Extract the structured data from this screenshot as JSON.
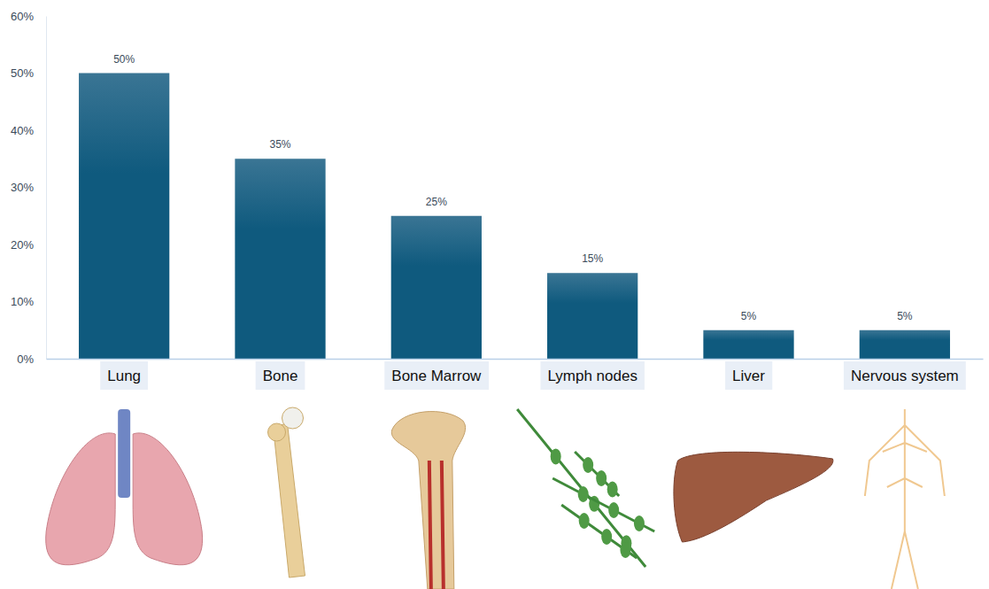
{
  "chart_data": {
    "type": "bar",
    "categories": [
      "Lung",
      "Bone",
      "Bone Marrow",
      "Lymph nodes",
      "Liver",
      "Nervous system"
    ],
    "values": [
      50,
      35,
      25,
      15,
      5,
      5
    ],
    "value_labels": [
      "50%",
      "35%",
      "25%",
      "15%",
      "5%",
      "5%"
    ],
    "color": "#0f5a7e",
    "ylim": [
      0,
      60
    ],
    "yticks": [
      {
        "value": 0,
        "label": "0%"
      },
      {
        "value": 10,
        "label": "10%"
      },
      {
        "value": 20,
        "label": "20%"
      },
      {
        "value": 30,
        "label": "30%"
      },
      {
        "value": 40,
        "label": "40%"
      },
      {
        "value": 50,
        "label": "50%"
      },
      {
        "value": 60,
        "label": "60%"
      }
    ],
    "grid": false,
    "data_labels": true
  }
}
